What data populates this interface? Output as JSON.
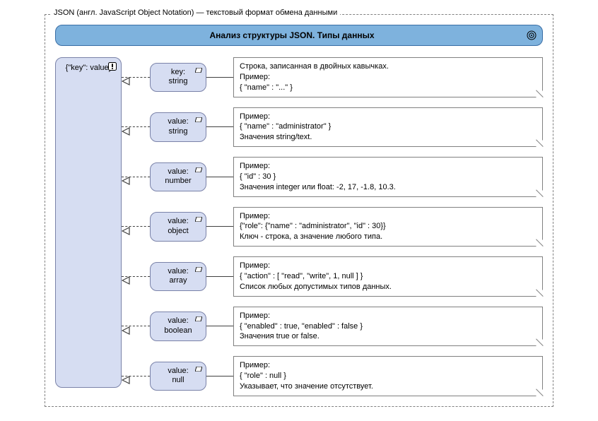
{
  "frame": {
    "label": "JSON (англ. JavaScript Object Notation) — текстовый формат обмена данными"
  },
  "title": "Анализ структуры JSON. Типы данных",
  "root": {
    "label": "{\"key\": value}"
  },
  "colors": {
    "title_bg": "#7eb2dd",
    "title_border": "#3a6ea5",
    "node_bg": "#d6ddf2",
    "node_border": "#7a82a8",
    "frame_border": "#808080",
    "line": "#404040",
    "desc_border": "#808080"
  },
  "rows": [
    {
      "mid_line1": "key:",
      "mid_line2": "string",
      "desc_line1": "Строка, записанная в двойных кавычках.",
      "desc_line2": "Пример:",
      "desc_line3": "{ \"name\" : \"...\" }"
    },
    {
      "mid_line1": "value:",
      "mid_line2": "string",
      "desc_line1": "Пример:",
      "desc_line2": "{ \"name\" : \"administrator\" }",
      "desc_line3": "Значения string/text."
    },
    {
      "mid_line1": "value:",
      "mid_line2": "number",
      "desc_line1": "Пример:",
      "desc_line2": "{ \"id\" : 30 }",
      "desc_line3": "Значения integer или float: -2, 17, -1.8, 10.3."
    },
    {
      "mid_line1": "value:",
      "mid_line2": "object",
      "desc_line1": "Пример:",
      "desc_line2": "{\"role\": {\"name\" : \"administrator\", \"id\" : 30}}",
      "desc_line3": "Ключ - строка, а значение любого типа."
    },
    {
      "mid_line1": "value:",
      "mid_line2": "array",
      "desc_line1": "Пример:",
      "desc_line2": "{ \"action\" : [ \"read\", \"write\", 1, null ] }",
      "desc_line3": "Список любых допустимых типов данных."
    },
    {
      "mid_line1": "value:",
      "mid_line2": "boolean",
      "desc_line1": "Пример:",
      "desc_line2": "{ \"enabled\" : true, \"enabled\" : false }",
      "desc_line3": "Значения true or false."
    },
    {
      "mid_line1": "value:",
      "mid_line2": "null",
      "desc_line1": "Пример:",
      "desc_line2": "{ \"role\" : null }",
      "desc_line3": "Указывает, что значение отсутствует."
    }
  ],
  "layout": {
    "conn_left_width": 52,
    "conn_mid_width": 38
  }
}
